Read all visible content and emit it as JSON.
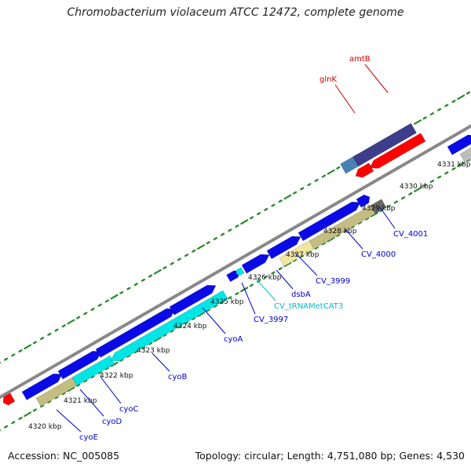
{
  "title": "Chromobacterium violaceum ATCC 12472, complete genome",
  "footer": {
    "accession": "Accession: NC_005085",
    "topology": "Topology: circular; Length: 4,751,080 bp; Genes: 4,530"
  },
  "colors": {
    "backbone": "#888888",
    "tick": "#2a8a2a",
    "blue_gene": "#0a0ae6",
    "cyan_gene": "#00e6e6",
    "khaki_gene": "#c4bd82",
    "pale_gene": "#f0e6a0",
    "red_gene": "#ff0000",
    "navy_gene": "#3d3d8c",
    "steel_gene": "#4682b4",
    "gray_gene": "#bdbdbd",
    "label_blue": "#0000cc",
    "label_cyan": "#00bbcc",
    "label_red": "#cc0000"
  },
  "ticks": [
    {
      "label": "4320 kbp"
    },
    {
      "label": "4321 kbp"
    },
    {
      "label": "4322 kbp"
    },
    {
      "label": "4323 kbp"
    },
    {
      "label": "4324 kbp"
    },
    {
      "label": "4325 kbp"
    },
    {
      "label": "4326 kbp"
    },
    {
      "label": "4327 kbp"
    },
    {
      "label": "4328 kbp"
    },
    {
      "label": "4329 kbp"
    },
    {
      "label": "4330 kbp"
    },
    {
      "label": "4331 kbp"
    }
  ],
  "gene_labels": [
    {
      "text": "cyoE",
      "color": "label_blue"
    },
    {
      "text": "cyoD",
      "color": "label_blue"
    },
    {
      "text": "cyoC",
      "color": "label_blue"
    },
    {
      "text": "cyoB",
      "color": "label_blue"
    },
    {
      "text": "cyoA",
      "color": "label_blue"
    },
    {
      "text": "CV_3997",
      "color": "label_blue"
    },
    {
      "text": "CV_tRNAMetCAT3",
      "color": "label_cyan"
    },
    {
      "text": "dsbA",
      "color": "label_blue"
    },
    {
      "text": "CV_3999",
      "color": "label_blue"
    },
    {
      "text": "CV_4000",
      "color": "label_blue"
    },
    {
      "text": "CV_4001",
      "color": "label_blue"
    },
    {
      "text": "glnK",
      "color": "label_red"
    },
    {
      "text": "amtB",
      "color": "label_red"
    }
  ]
}
